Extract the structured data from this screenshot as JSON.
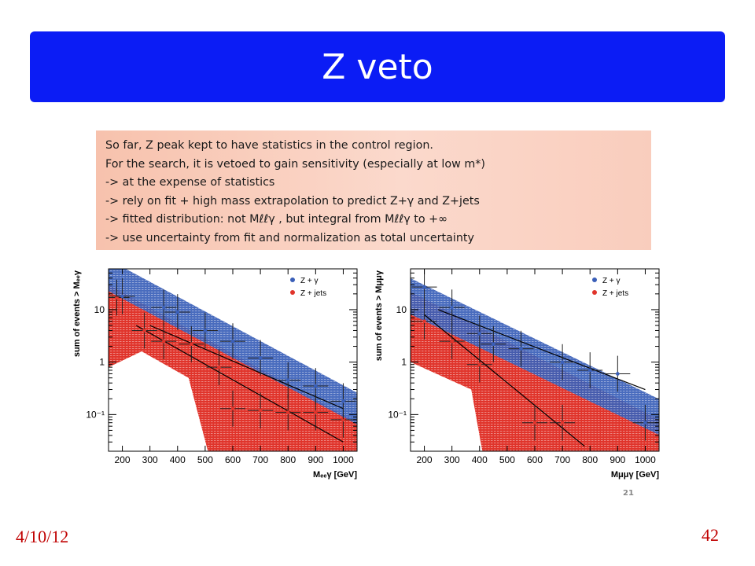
{
  "slide": {
    "title": "Z veto",
    "footer_date": "4/10/12",
    "footer_number": "42",
    "page_label": "21"
  },
  "note": {
    "lines": [
      "So far, Z peak kept to have statistics in the control region.",
      "For the search, it is vetoed to gain sensitivity (especially at low m*)",
      "-> at the expense of statistics",
      "-> rely on fit + high mass extrapolation to predict Z+γ and Z+jets",
      "-> fitted distribution: not Mℓℓγ , but integral from Mℓℓγ to +∞",
      "-> use uncertainty from fit and normalization as total uncertainty"
    ]
  },
  "colors": {
    "title_bg": "#0b1cf5",
    "blue_series": "#3a5fb8",
    "red_series": "#e0342b",
    "footer": "#c00000"
  },
  "chart_data": [
    {
      "type": "scatter",
      "ylabel": "sum of events > Mₑₑγ",
      "xlabel": "Mₑₑγ [GeV]",
      "xlim": [
        150,
        1050
      ],
      "ylim": [
        0.02,
        60
      ],
      "yscale": "log",
      "x_ticks": [
        200,
        300,
        400,
        500,
        600,
        700,
        800,
        900,
        1000
      ],
      "y_ticks": [
        {
          "v": 10,
          "label": "10"
        },
        {
          "v": 1,
          "label": "1"
        },
        {
          "v": 0.1,
          "label": "10⁻¹"
        }
      ],
      "legend": [
        "Z + γ",
        "Z + jets"
      ],
      "series": [
        {
          "name": "Z + γ",
          "points": [
            [
              200,
              18
            ],
            [
              350,
              11
            ],
            [
              400,
              9
            ],
            [
              500,
              4
            ],
            [
              600,
              2.5
            ],
            [
              700,
              1.2
            ],
            [
              800,
              0.45
            ],
            [
              900,
              0.35
            ],
            [
              1000,
              0.18
            ]
          ],
          "band_center": [
            [
              150,
              45
            ],
            [
              1050,
              0.13
            ]
          ],
          "band_factor": 2.0,
          "fit": [
            [
              300,
              5
            ],
            [
              1000,
              0.13
            ]
          ]
        },
        {
          "name": "Z + jets",
          "points": [
            [
              180,
              17
            ],
            [
              280,
              4
            ],
            [
              350,
              2.5
            ],
            [
              450,
              2.2
            ],
            [
              550,
              0.8
            ],
            [
              600,
              0.13
            ],
            [
              700,
              0.12
            ],
            [
              800,
              0.11
            ],
            [
              900,
              0.11
            ],
            [
              1000,
              0.08
            ]
          ],
          "band_upper": [
            [
              150,
              30
            ],
            [
              1050,
              0.07
            ]
          ],
          "band_lower": [
            [
              150,
              0.8
            ],
            [
              270,
              1.6
            ],
            [
              440,
              0.5
            ],
            [
              510,
              0.02
            ],
            [
              1050,
              0.02
            ]
          ],
          "fit": [
            [
              250,
              5
            ],
            [
              1000,
              0.03
            ]
          ]
        }
      ]
    },
    {
      "type": "scatter",
      "ylabel": "sum of events > Mμμγ",
      "xlabel": "Mμμγ [GeV]",
      "xlim": [
        150,
        1050
      ],
      "ylim": [
        0.02,
        60
      ],
      "yscale": "log",
      "x_ticks": [
        200,
        300,
        400,
        500,
        600,
        700,
        800,
        900,
        1000
      ],
      "y_ticks": [
        {
          "v": 10,
          "label": "10"
        },
        {
          "v": 1,
          "label": "1"
        },
        {
          "v": 0.1,
          "label": "10⁻¹"
        }
      ],
      "legend": [
        "Z + γ",
        "Z + jets"
      ],
      "series": [
        {
          "name": "Z + γ",
          "points": [
            [
              200,
              27
            ],
            [
              300,
              11
            ],
            [
              400,
              3.5
            ],
            [
              450,
              2.2
            ],
            [
              550,
              1.8
            ],
            [
              700,
              1.0
            ],
            [
              800,
              0.7
            ],
            [
              900,
              0.6
            ],
            [
              1000,
              0.07
            ]
          ],
          "band_center": [
            [
              150,
              18
            ],
            [
              1050,
              0.09
            ]
          ],
          "band_factor": 2.2,
          "fit": [
            [
              250,
              10
            ],
            [
              1000,
              0.3
            ]
          ]
        },
        {
          "name": "Z + jets",
          "points": [
            [
              200,
              6
            ],
            [
              300,
              2.5
            ],
            [
              400,
              0.9
            ],
            [
              600,
              0.07
            ],
            [
              700,
              0.07
            ]
          ],
          "band_upper": [
            [
              150,
              22
            ],
            [
              1050,
              0.08
            ]
          ],
          "band_lower": [
            [
              150,
              1.0
            ],
            [
              370,
              0.3
            ],
            [
              410,
              0.02
            ],
            [
              1050,
              0.02
            ]
          ],
          "fit": [
            [
              200,
              8
            ],
            [
              780,
              0.025
            ]
          ]
        }
      ]
    }
  ]
}
